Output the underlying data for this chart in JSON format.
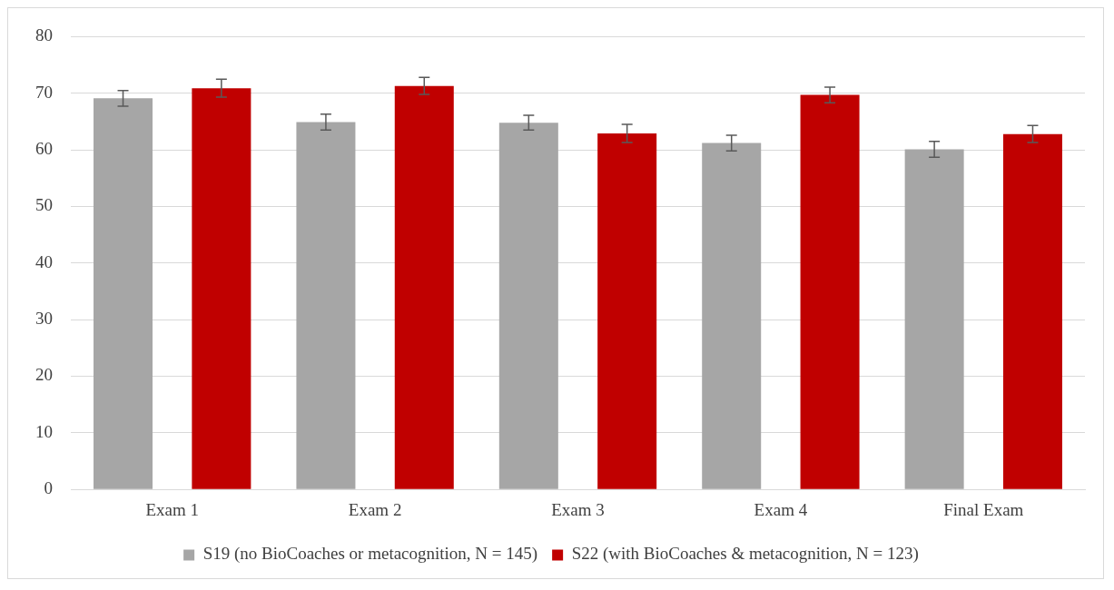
{
  "chart_data": {
    "type": "bar",
    "categories": [
      "Exam 1",
      "Exam 2",
      "Exam 3",
      "Exam 4",
      "Final Exam"
    ],
    "series": [
      {
        "name": "S19 (no BioCoaches or metacognition, N = 145)",
        "color": "#a6a6a6",
        "values": [
          69.1,
          64.9,
          64.8,
          61.2,
          60.1
        ],
        "errors": [
          1.4,
          1.4,
          1.3,
          1.4,
          1.4
        ]
      },
      {
        "name": "S22 (with BioCoaches & metacognition, N = 123)",
        "color": "#c00000",
        "values": [
          70.9,
          71.3,
          62.9,
          69.7,
          62.8
        ],
        "errors": [
          1.6,
          1.5,
          1.6,
          1.4,
          1.5
        ]
      }
    ],
    "ylim": [
      0,
      80
    ],
    "yticks": [
      0,
      10,
      20,
      30,
      40,
      50,
      60,
      70,
      80
    ],
    "grid": "y",
    "legend": "bottom"
  }
}
